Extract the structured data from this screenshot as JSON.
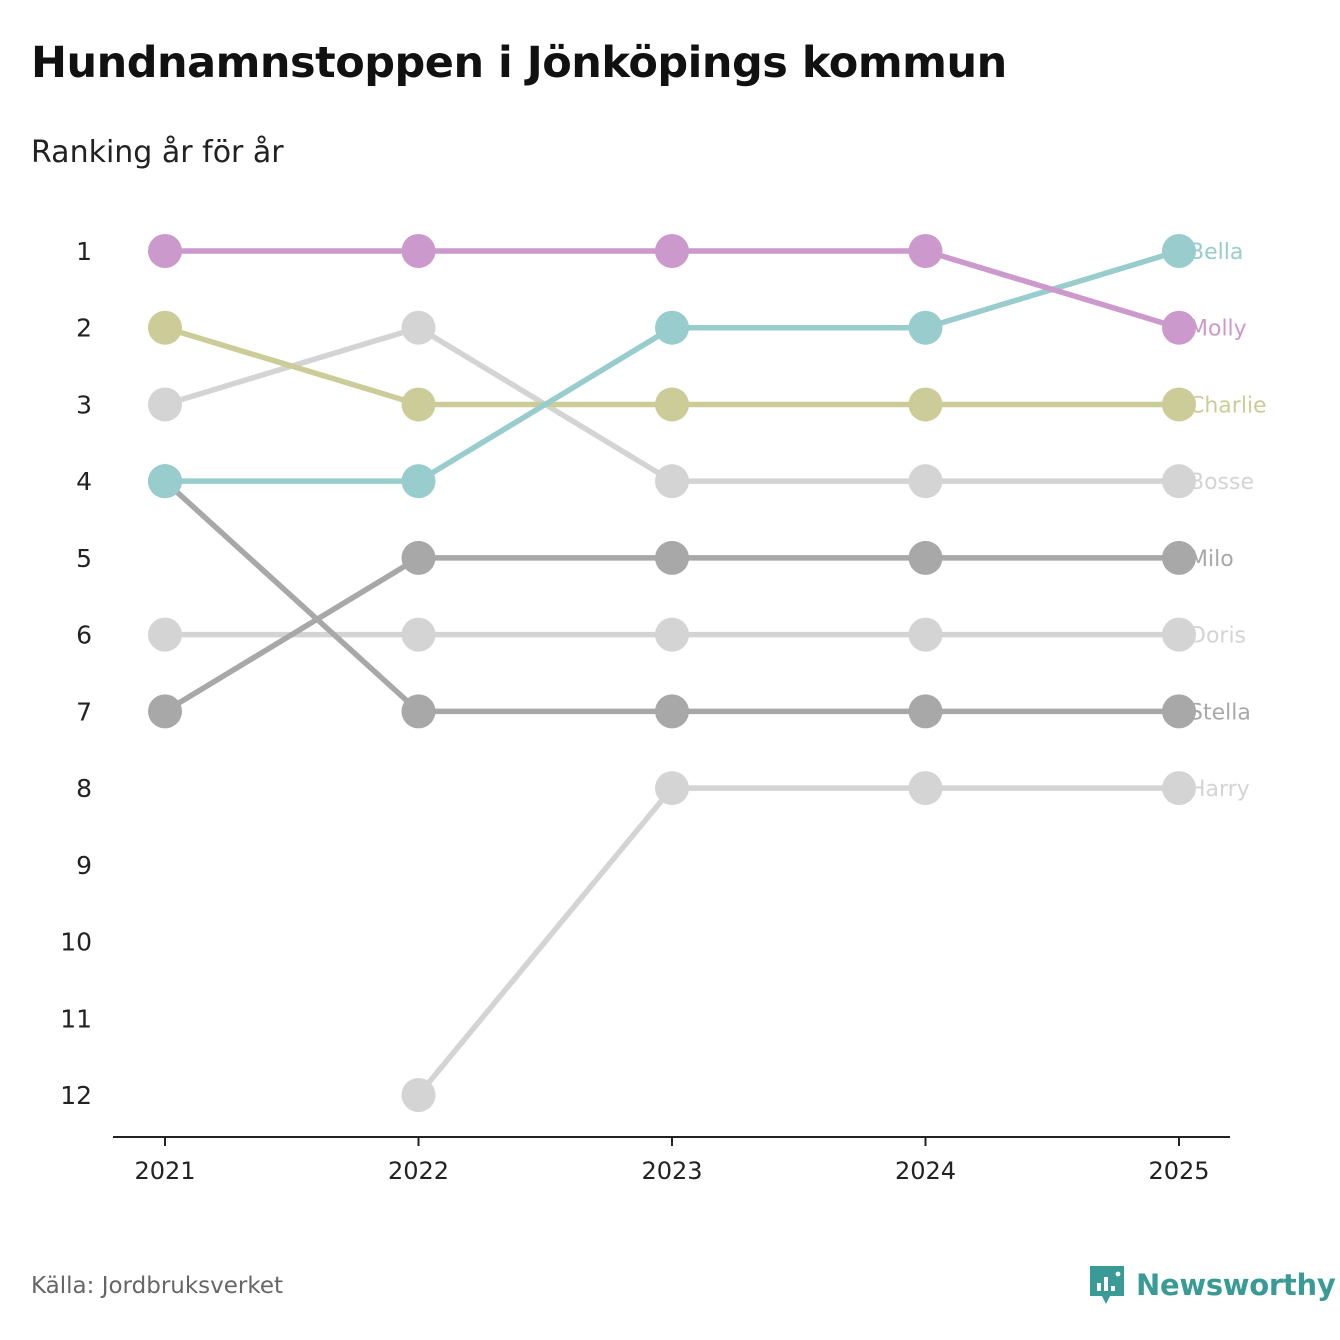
{
  "title": "Hundnamnstoppen i Jönköpings kommun",
  "subtitle": "Ranking år för år",
  "source": "Källa: Jordbruksverket",
  "brand": {
    "name": "Newsworthy",
    "icon": "newsworthy-logo-icon",
    "color": "#3a9a95"
  },
  "chart_data": {
    "type": "line",
    "title": "Hundnamnstoppen i Jönköpings kommun",
    "subtitle": "Ranking år för år",
    "x": [
      "2021",
      "2022",
      "2023",
      "2024",
      "2025"
    ],
    "y_ticks": [
      "1",
      "2",
      "3",
      "4",
      "5",
      "6",
      "7",
      "8",
      "9",
      "10",
      "11",
      "12"
    ],
    "ylim": [
      1,
      12
    ],
    "y_inverted": true,
    "series": [
      {
        "name": "Doris",
        "values": [
          6,
          6,
          6,
          6,
          6
        ],
        "color": "#d4d4d4"
      },
      {
        "name": "Harry",
        "values": [
          null,
          12,
          8,
          8,
          8
        ],
        "color": "#d4d4d4"
      },
      {
        "name": "Bosse",
        "values": [
          3,
          2,
          4,
          4,
          4
        ],
        "color": "#d4d4d4"
      },
      {
        "name": "Milo",
        "values": [
          7,
          5,
          5,
          5,
          5
        ],
        "color": "#a8a8a8"
      },
      {
        "name": "Stella",
        "values": [
          4,
          7,
          7,
          7,
          7
        ],
        "color": "#a8a8a8"
      },
      {
        "name": "Charlie",
        "values": [
          2,
          3,
          3,
          3,
          3
        ],
        "color": "#cccc99"
      },
      {
        "name": "Bella",
        "values": [
          4,
          4,
          2,
          2,
          1
        ],
        "color": "#99cccc"
      },
      {
        "name": "Molly",
        "values": [
          1,
          1,
          1,
          1,
          2
        ],
        "color": "#cc99cc"
      }
    ]
  }
}
